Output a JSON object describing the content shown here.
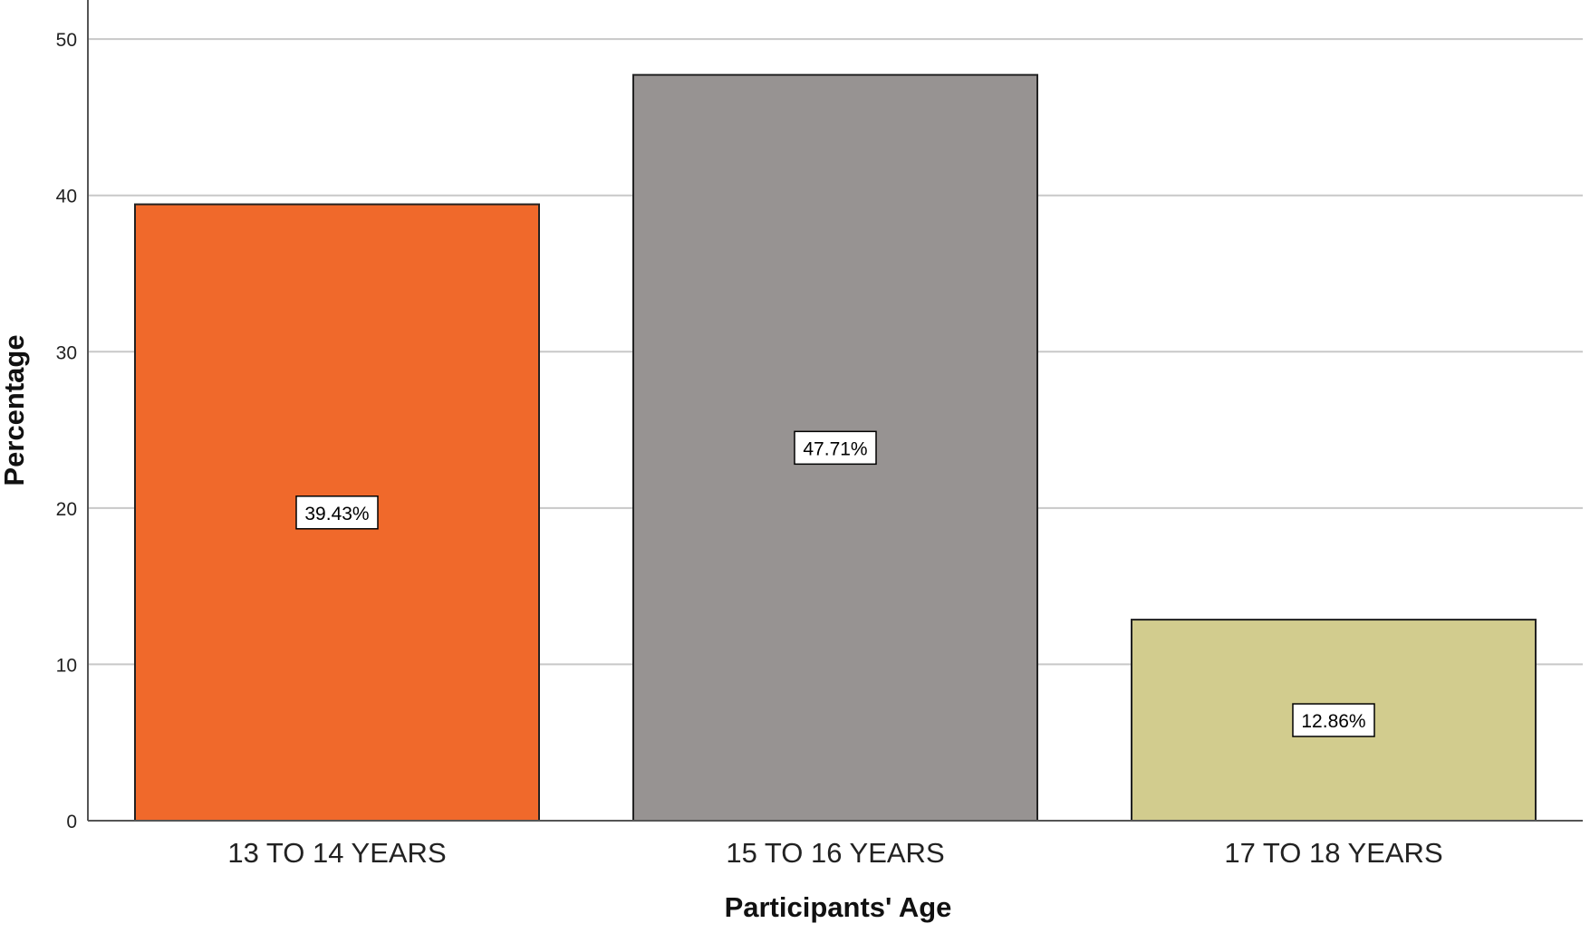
{
  "chart_data": {
    "type": "bar",
    "categories": [
      "13 TO 14 YEARS",
      "15 TO 16 YEARS",
      "17 TO 18 YEARS"
    ],
    "values": [
      39.43,
      47.71,
      12.86
    ],
    "data_labels": [
      "39.43%",
      "47.71%",
      "12.86%"
    ],
    "colors": [
      "#f0692b",
      "#979392",
      "#d2cc8e"
    ],
    "xlabel": "Participants' Age",
    "ylabel": "Percentage",
    "ylim": [
      0,
      52.5
    ],
    "yticks": [
      0,
      10,
      20,
      30,
      40,
      50
    ],
    "grid": true,
    "legend": "none"
  }
}
